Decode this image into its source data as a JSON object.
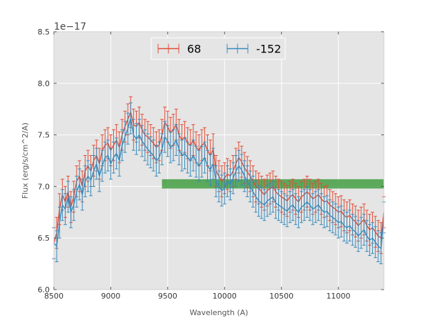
{
  "chart_data": {
    "type": "line",
    "title": "",
    "xlabel": "Wavelength (A)",
    "ylabel": "Flux (erg/s/cm^2/A)",
    "y_offset_label": "1e−17",
    "xlim": [
      8500,
      11400
    ],
    "ylim": [
      6.0,
      8.5
    ],
    "x_ticks": [
      8500,
      9000,
      9500,
      10000,
      10500,
      11000
    ],
    "x_tick_labels": [
      "8500",
      "9000",
      "9500",
      "10000",
      "10500",
      "11000"
    ],
    "y_ticks": [
      6.0,
      6.5,
      7.0,
      7.5,
      8.0,
      8.5
    ],
    "y_tick_labels": [
      "6.0",
      "6.5",
      "7.0",
      "7.5",
      "8.0",
      "8.5"
    ],
    "grid": true,
    "legend_position": "top-center",
    "background": "#e5e5e5",
    "band": {
      "x": [
        9450,
        11400
      ],
      "y": [
        6.98,
        7.07
      ],
      "color": "#3a9a3a"
    },
    "series": [
      {
        "name": "68",
        "color": "#e24a33",
        "error": 0.15,
        "x": [
          8500,
          8525,
          8550,
          8575,
          8600,
          8625,
          8650,
          8675,
          8700,
          8725,
          8750,
          8775,
          8800,
          8825,
          8850,
          8875,
          8900,
          8925,
          8950,
          8975,
          9000,
          9025,
          9050,
          9075,
          9100,
          9125,
          9150,
          9175,
          9200,
          9225,
          9250,
          9275,
          9300,
          9325,
          9350,
          9375,
          9400,
          9425,
          9450,
          9475,
          9500,
          9525,
          9550,
          9575,
          9600,
          9625,
          9650,
          9675,
          9700,
          9725,
          9750,
          9775,
          9800,
          9825,
          9850,
          9875,
          9900,
          9925,
          9950,
          9975,
          10000,
          10025,
          10050,
          10075,
          10100,
          10125,
          10150,
          10175,
          10200,
          10225,
          10250,
          10275,
          10300,
          10325,
          10350,
          10375,
          10400,
          10425,
          10450,
          10475,
          10500,
          10525,
          10550,
          10575,
          10600,
          10625,
          10650,
          10675,
          10700,
          10725,
          10750,
          10775,
          10800,
          10825,
          10850,
          10875,
          10900,
          10925,
          10950,
          10975,
          11000,
          11025,
          11050,
          11075,
          11100,
          11125,
          11150,
          11175,
          11200,
          11225,
          11250,
          11275,
          11300,
          11325,
          11350,
          11375,
          11400
        ],
        "y": [
          6.45,
          6.55,
          6.78,
          6.92,
          6.85,
          6.95,
          6.8,
          6.9,
          7.05,
          7.1,
          7.0,
          7.15,
          7.2,
          7.15,
          7.25,
          7.3,
          7.22,
          7.35,
          7.4,
          7.42,
          7.35,
          7.4,
          7.45,
          7.38,
          7.5,
          7.58,
          7.65,
          7.72,
          7.6,
          7.58,
          7.62,
          7.55,
          7.5,
          7.48,
          7.45,
          7.42,
          7.38,
          7.4,
          7.5,
          7.62,
          7.58,
          7.52,
          7.55,
          7.6,
          7.5,
          7.45,
          7.48,
          7.42,
          7.4,
          7.45,
          7.38,
          7.35,
          7.4,
          7.42,
          7.35,
          7.3,
          7.36,
          7.15,
          7.1,
          7.05,
          7.08,
          7.12,
          7.1,
          7.15,
          7.22,
          7.28,
          7.24,
          7.18,
          7.14,
          7.1,
          7.05,
          7.0,
          6.98,
          6.95,
          6.92,
          6.96,
          6.98,
          7.0,
          6.95,
          6.92,
          6.9,
          6.88,
          6.86,
          6.9,
          6.92,
          6.88,
          6.85,
          6.9,
          6.92,
          6.95,
          6.92,
          6.88,
          6.9,
          6.92,
          6.88,
          6.85,
          6.86,
          6.82,
          6.8,
          6.78,
          6.75,
          6.76,
          6.72,
          6.7,
          6.72,
          6.68,
          6.66,
          6.62,
          6.65,
          6.68,
          6.62,
          6.58,
          6.6,
          6.56,
          6.52,
          6.5,
          6.75
        ]
      },
      {
        "name": "-152",
        "color": "#348abd",
        "error": 0.15,
        "x": [
          8500,
          8525,
          8550,
          8575,
          8600,
          8625,
          8650,
          8675,
          8700,
          8725,
          8750,
          8775,
          8800,
          8825,
          8850,
          8875,
          8900,
          8925,
          8950,
          8975,
          9000,
          9025,
          9050,
          9075,
          9100,
          9125,
          9150,
          9175,
          9200,
          9225,
          9250,
          9275,
          9300,
          9325,
          9350,
          9375,
          9400,
          9425,
          9450,
          9475,
          9500,
          9525,
          9550,
          9575,
          9600,
          9625,
          9650,
          9675,
          9700,
          9725,
          9750,
          9775,
          9800,
          9825,
          9850,
          9875,
          9900,
          9925,
          9950,
          9975,
          10000,
          10025,
          10050,
          10075,
          10100,
          10125,
          10150,
          10175,
          10200,
          10225,
          10250,
          10275,
          10300,
          10325,
          10350,
          10375,
          10400,
          10425,
          10450,
          10475,
          10500,
          10525,
          10550,
          10575,
          10600,
          10625,
          10650,
          10675,
          10700,
          10725,
          10750,
          10775,
          10800,
          10825,
          10850,
          10875,
          10900,
          10925,
          10950,
          10975,
          11000,
          11025,
          11050,
          11075,
          11100,
          11125,
          11150,
          11175,
          11200,
          11225,
          11250,
          11275,
          11300,
          11325,
          11350,
          11375,
          11400
        ],
        "y": [
          6.45,
          6.42,
          6.65,
          6.82,
          6.78,
          6.9,
          6.75,
          6.82,
          6.95,
          7.02,
          6.92,
          7.05,
          7.1,
          7.06,
          7.15,
          7.22,
          7.1,
          7.2,
          7.28,
          7.3,
          7.22,
          7.28,
          7.32,
          7.25,
          7.4,
          7.48,
          7.56,
          7.66,
          7.5,
          7.46,
          7.5,
          7.44,
          7.4,
          7.36,
          7.33,
          7.3,
          7.25,
          7.28,
          7.36,
          7.48,
          7.44,
          7.38,
          7.4,
          7.45,
          7.36,
          7.3,
          7.32,
          7.28,
          7.25,
          7.3,
          7.24,
          7.2,
          7.24,
          7.28,
          7.2,
          7.16,
          7.22,
          7.05,
          7.0,
          6.96,
          6.98,
          7.05,
          7.02,
          7.08,
          7.15,
          7.2,
          7.16,
          7.1,
          7.05,
          7.0,
          6.95,
          6.9,
          6.86,
          6.84,
          6.82,
          6.86,
          6.88,
          6.9,
          6.84,
          6.82,
          6.8,
          6.78,
          6.76,
          6.8,
          6.82,
          6.78,
          6.75,
          6.8,
          6.82,
          6.85,
          6.82,
          6.78,
          6.8,
          6.82,
          6.78,
          6.75,
          6.76,
          6.72,
          6.7,
          6.68,
          6.65,
          6.66,
          6.62,
          6.6,
          6.62,
          6.58,
          6.56,
          6.52,
          6.55,
          6.58,
          6.52,
          6.48,
          6.5,
          6.46,
          6.42,
          6.4,
          6.7
        ]
      }
    ]
  }
}
